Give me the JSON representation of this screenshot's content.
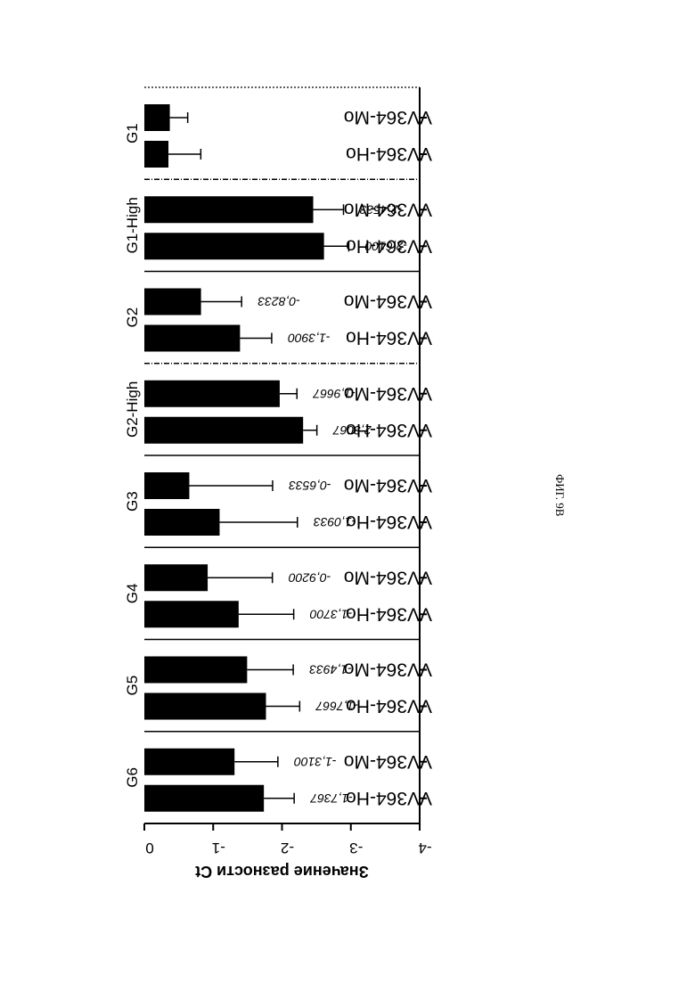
{
  "chart_data": {
    "type": "bar",
    "orientation": "rotated-90-clockwise",
    "ylabel": "Значение разности Ct",
    "ylim": [
      0,
      -4
    ],
    "yticks": [
      "0",
      "-1",
      "-2",
      "-3",
      "-4"
    ],
    "groups": [
      {
        "name": "G1",
        "bars": [
          {
            "label": "VV364-Ho",
            "value": -0.35,
            "error": 0.47,
            "value_label": ""
          },
          {
            "label": "VV364-Mo",
            "value": -0.37,
            "error": 0.26,
            "value_label": ""
          }
        ]
      },
      {
        "name": "G1-High",
        "bars": [
          {
            "label": "VV364-Ho",
            "value": -2.61,
            "error": 0.36,
            "value_label": "-2,6100"
          },
          {
            "label": "VV364-Mo",
            "value": -2.4533,
            "error": 0.44,
            "value_label": "-2,4533"
          }
        ]
      },
      {
        "name": "G2",
        "bars": [
          {
            "label": "VV364-Ho",
            "value": -1.39,
            "error": 0.46,
            "value_label": "-1,3900"
          },
          {
            "label": "VV364-Mo",
            "value": -0.8233,
            "error": 0.59,
            "value_label": "-0,8233"
          }
        ]
      },
      {
        "name": "G2-High",
        "bars": [
          {
            "label": "VV364-Ho",
            "value": -2.3067,
            "error": 0.2,
            "value_label": "-2,3067"
          },
          {
            "label": "VV364-Mo",
            "value": -1.9667,
            "error": 0.25,
            "value_label": "-1,9667"
          }
        ]
      },
      {
        "name": "G3",
        "bars": [
          {
            "label": "VV364-Ho",
            "value": -1.0933,
            "error": 1.13,
            "value_label": "-1,0933"
          },
          {
            "label": "VV364-Mo",
            "value": -0.6533,
            "error": 1.21,
            "value_label": "-0,6533"
          }
        ]
      },
      {
        "name": "G4",
        "bars": [
          {
            "label": "VV364-Ho",
            "value": -1.37,
            "error": 0.8,
            "value_label": "-1,3700"
          },
          {
            "label": "VV364-Mo",
            "value": -0.92,
            "error": 0.94,
            "value_label": "-0,9200"
          }
        ]
      },
      {
        "name": "G5",
        "bars": [
          {
            "label": "VV364-Ho",
            "value": -1.7667,
            "error": 0.49,
            "value_label": "-1,7667"
          },
          {
            "label": "VV364-Mo",
            "value": -1.4933,
            "error": 0.67,
            "value_label": "-1,4933"
          }
        ]
      },
      {
        "name": "G6",
        "bars": [
          {
            "label": "VV364-Ho",
            "value": -1.7367,
            "error": 0.44,
            "value_label": "-1,7367"
          },
          {
            "label": "VV364-Mo",
            "value": -1.31,
            "error": 0.63,
            "value_label": "-1,3100"
          }
        ]
      }
    ],
    "separators": [
      "dash-dot",
      "solid",
      "dash-dot",
      "solid",
      "solid",
      "solid",
      "solid"
    ],
    "colors": {
      "bar": "#000000",
      "text": "#000000",
      "background": "#ffffff"
    }
  },
  "caption": "ФИГ. 9B"
}
